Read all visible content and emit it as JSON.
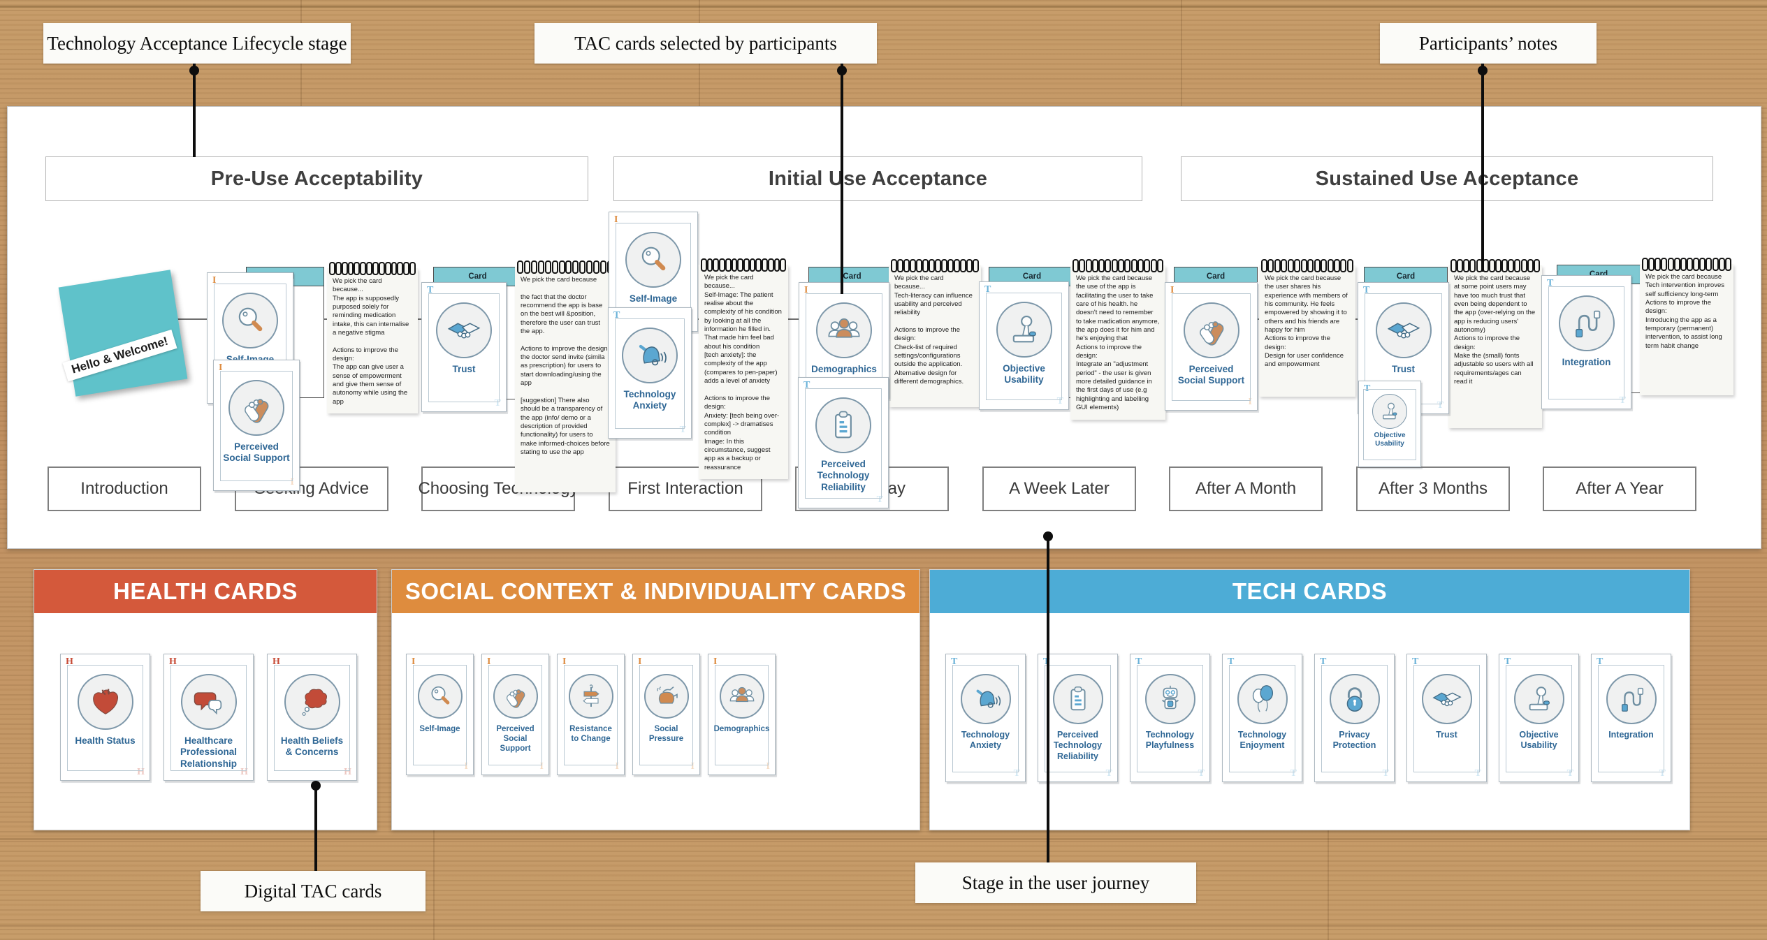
{
  "annotations": {
    "top": [
      {
        "label": "Technology Acceptance Lifecycle stage"
      },
      {
        "label": "TAC cards selected by participants"
      },
      {
        "label": "Participants’ notes"
      }
    ],
    "bottom": [
      {
        "label": "Digital TAC cards"
      },
      {
        "label": "Stage in the user journey"
      }
    ]
  },
  "phases": [
    "Pre-Use Acceptability",
    "Initial Use Acceptance",
    "Sustained Use Acceptance"
  ],
  "sticky_note": {
    "text": "Hello & Welcome!"
  },
  "card_back_label": "Card",
  "journey": {
    "stages": [
      {
        "label": "Introduction"
      },
      {
        "label": "Seeking Advice",
        "cards": [
          {
            "name": "Self-Image",
            "letter": "I",
            "icon": "magnifier-icon"
          },
          {
            "name": "Perceived Social Support",
            "letter": "I",
            "icon": "clasped-hands-icon"
          }
        ],
        "note": "We pick the card because...\nThe app is supposedly purposed solely for reminding medication intake, this can internalise a negative stigma\n\nActions to improve the design:\nThe app can give user a sense of empowerment and give them sense of autonomy while using the app"
      },
      {
        "label": "Choosing Technology",
        "cards": [
          {
            "name": "Trust",
            "letter": "T",
            "icon": "handshake-icon"
          }
        ],
        "note": "We pick the card because\n\nthe fact that the doctor recommend the app is base on the best will &position, therefore the user can trust the app.\n\nActions to improve the design:\nthe doctor send invite (simila as prescription) for users to start downloading/using the app\n\n[suggestion] There also should be a transparency of the app (info/ demo or a description of provided functionality) for users to make informed-choices before stating to use the app"
      },
      {
        "label": "First Interaction",
        "cards": [
          {
            "name": "Self-Image",
            "letter": "I",
            "icon": "magnifier-icon"
          },
          {
            "name": "Technology Anxiety",
            "letter": "T",
            "icon": "bell-icon"
          }
        ],
        "note": "We pick the card because...\nSelf-Image: The patient realise about the complexity of his condition by looking at all the information he filled in. That made him feel bad about his condition\n[tech anxiety]: the complexity of the app (compares to pen-paper) adds a level of anxiety\n\nActions to improve the design:\nAnxiety: [tech being over-complex] -> dramatises condition\nImage: In this circumstance, suggest app as a backup or reassurance"
      },
      {
        "label": "First Day",
        "cards": [
          {
            "name": "Demographics",
            "letter": "I",
            "icon": "people-group-icon"
          },
          {
            "name": "Perceived Technology Reliability",
            "letter": "T",
            "icon": "clipboard-icon"
          }
        ],
        "note": "We pick the card because...\nTech-literacy can influence usability and perceived reliability\n\nActions to improve the design:\nCheck-list of required settings/configurations outside the application.\nAlternative design for different demographics."
      },
      {
        "label": "A Week Later",
        "cards": [
          {
            "name": "Objective Usability",
            "letter": "T",
            "icon": "joystick-icon"
          }
        ],
        "note": "We pick the card because the use of the app is facilitating the user to take care of his health. he doesn't need to remember to take madication anymore, the app does it for him and he's enjoying that\nActions to improve the design:\nIntegrate an \"adjustment period\" - the user is given more detailed guidance in the first days of use (e.g highlighting and labelling GUI elements)"
      },
      {
        "label": "After A Month",
        "cards": [
          {
            "name": "Perceived Social Support",
            "letter": "I",
            "icon": "clasped-hands-icon"
          }
        ],
        "note": "We pick the card because the user shares his experience with members of his community. He feels empowered by showing it to others and his friends are happy for him\nActions to improve the design:\nDesign for user confidence and empowerment"
      },
      {
        "label": "After 3 Months",
        "cards": [
          {
            "name": "Trust",
            "letter": "T",
            "icon": "handshake-icon"
          },
          {
            "name": "Objective Usability",
            "letter": "T",
            "icon": "joystick-icon"
          }
        ],
        "note": "We pick the card because at some point users may have too much trust that even being dependent to the app (over-relying on the app is reducing users' autonomy)\nActions to improve the design:\nMake the   (small) fonts adjustable so users with all requirements/ages can read it"
      },
      {
        "label": "After A Year",
        "cards": [
          {
            "name": "Integration",
            "letter": "T",
            "icon": "cable-icon"
          }
        ],
        "note": "We pick the card because\nTech intervention improves self sufficiency long-term\nActions to improve the design:\nIntroducing the app as a temporary (permanent) intervention, to assist long term habit change"
      }
    ]
  },
  "libraries": [
    {
      "title": "HEALTH CARDS",
      "header_color": "#d4593b",
      "letter": "H",
      "cards": [
        {
          "name": "Health Status",
          "icon": "heart-organ-icon"
        },
        {
          "name": "Healthcare Professional Relationship",
          "icon": "speech-bubbles-icon"
        },
        {
          "name": "Health Beliefs & Concerns",
          "icon": "thought-cloud-icon"
        }
      ]
    },
    {
      "title": "SOCIAL CONTEXT & INDIVIDUALITY CARDS",
      "header_color": "#de8c3e",
      "letter": "I",
      "cards": [
        {
          "name": "Self-Image",
          "icon": "magnifier-icon"
        },
        {
          "name": "Perceived Social Support",
          "icon": "clasped-hands-icon"
        },
        {
          "name": "Resistance to Change",
          "icon": "signpost-icon"
        },
        {
          "name": "Social Pressure",
          "icon": "kettle-icon"
        },
        {
          "name": "Demographics",
          "icon": "people-group-icon"
        }
      ]
    },
    {
      "title": "TECH CARDS",
      "header_color": "#4dacd6",
      "letter": "T",
      "cards": [
        {
          "name": "Technology Anxiety",
          "icon": "bell-icon"
        },
        {
          "name": "Perceived Technology Reliability",
          "icon": "clipboard-icon"
        },
        {
          "name": "Technology Playfulness",
          "icon": "robot-icon"
        },
        {
          "name": "Technology Enjoyment",
          "icon": "balloons-icon"
        },
        {
          "name": "Privacy Protection",
          "icon": "padlock-icon"
        },
        {
          "name": "Trust",
          "icon": "handshake-icon"
        },
        {
          "name": "Objective Usability",
          "icon": "joystick-icon"
        },
        {
          "name": "Integration",
          "icon": "cable-icon"
        }
      ]
    }
  ],
  "colors": {
    "health_header": "#d4593b",
    "social_header": "#de8c3e",
    "tech_header": "#4dacd6",
    "card_label_blue": "#2f6795",
    "card_back_teal": "#7fc9d3",
    "sticky_note_teal": "#5fc2ca",
    "letter_I": "#dd8b3f",
    "letter_T": "#6ab2d8",
    "letter_H": "#c64a35"
  }
}
